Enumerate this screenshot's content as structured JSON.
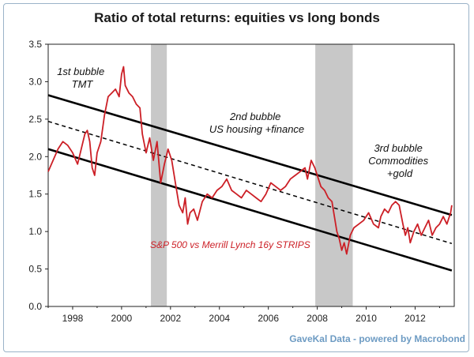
{
  "chart_data": {
    "type": "line",
    "title": "Ratio of total returns: equities vs long bonds",
    "xlabel": "",
    "ylabel": "",
    "xlim": [
      1997.0,
      2013.6
    ],
    "ylim": [
      0.0,
      3.5
    ],
    "xticks": [
      1998,
      2000,
      2002,
      2004,
      2006,
      2008,
      2010,
      2012
    ],
    "xtick_labels": [
      "1998",
      "2000",
      "2002",
      "2004",
      "2006",
      "2008",
      "2010",
      "2012"
    ],
    "yticks": [
      0.0,
      0.5,
      1.0,
      1.5,
      2.0,
      2.5,
      3.0,
      3.5
    ],
    "ytick_labels": [
      "0.0",
      "0.5",
      "1.0",
      "1.5",
      "2.0",
      "2.5",
      "3.0",
      "3.5"
    ],
    "recessions": [
      {
        "start": 2001.2,
        "end": 2001.85
      },
      {
        "start": 2007.92,
        "end": 2009.45
      }
    ],
    "series": [
      {
        "name": "S&P 500 vs Merrill Lynch 16y STRIPS",
        "color": "#cc1f26",
        "x": [
          1997.0,
          1997.2,
          1997.4,
          1997.6,
          1997.8,
          1998.0,
          1998.2,
          1998.35,
          1998.5,
          1998.6,
          1998.7,
          1998.8,
          1998.9,
          1999.0,
          1999.15,
          1999.3,
          1999.45,
          1999.6,
          1999.75,
          1999.9,
          2000.0,
          2000.08,
          2000.15,
          2000.3,
          2000.45,
          2000.6,
          2000.75,
          2000.85,
          2001.0,
          2001.15,
          2001.3,
          2001.45,
          2001.6,
          2001.75,
          2001.9,
          2002.05,
          2002.2,
          2002.35,
          2002.5,
          2002.6,
          2002.7,
          2002.8,
          2002.95,
          2003.1,
          2003.3,
          2003.5,
          2003.7,
          2003.9,
          2004.1,
          2004.3,
          2004.5,
          2004.7,
          2004.9,
          2005.1,
          2005.3,
          2005.5,
          2005.7,
          2005.9,
          2006.1,
          2006.3,
          2006.5,
          2006.7,
          2006.9,
          2007.1,
          2007.3,
          2007.5,
          2007.6,
          2007.75,
          2007.9,
          2008.0,
          2008.15,
          2008.3,
          2008.45,
          2008.6,
          2008.7,
          2008.8,
          2008.9,
          2009.0,
          2009.1,
          2009.2,
          2009.35,
          2009.5,
          2009.7,
          2009.9,
          2010.1,
          2010.3,
          2010.5,
          2010.6,
          2010.75,
          2010.9,
          2011.05,
          2011.2,
          2011.35,
          2011.5,
          2011.6,
          2011.7,
          2011.8,
          2011.95,
          2012.1,
          2012.25,
          2012.4,
          2012.55,
          2012.7,
          2012.85,
          2013.0,
          2013.15,
          2013.3,
          2013.45,
          2013.5
        ],
        "values": [
          1.8,
          1.95,
          2.1,
          2.2,
          2.15,
          2.05,
          1.9,
          2.1,
          2.3,
          2.35,
          2.2,
          1.85,
          1.75,
          2.05,
          2.2,
          2.55,
          2.8,
          2.85,
          2.9,
          2.8,
          3.1,
          3.2,
          2.95,
          2.85,
          2.8,
          2.7,
          2.65,
          2.3,
          2.05,
          2.25,
          1.95,
          2.2,
          1.65,
          1.9,
          2.1,
          1.95,
          1.65,
          1.35,
          1.25,
          1.45,
          1.1,
          1.25,
          1.3,
          1.15,
          1.4,
          1.5,
          1.45,
          1.55,
          1.6,
          1.7,
          1.55,
          1.5,
          1.45,
          1.55,
          1.5,
          1.45,
          1.4,
          1.5,
          1.65,
          1.6,
          1.55,
          1.6,
          1.7,
          1.75,
          1.8,
          1.85,
          1.7,
          1.95,
          1.85,
          1.75,
          1.6,
          1.55,
          1.45,
          1.4,
          1.2,
          1.0,
          0.9,
          0.75,
          0.85,
          0.7,
          0.95,
          1.05,
          1.1,
          1.15,
          1.25,
          1.1,
          1.05,
          1.2,
          1.3,
          1.25,
          1.35,
          1.4,
          1.35,
          1.1,
          0.95,
          1.05,
          0.85,
          1.0,
          1.1,
          0.95,
          1.05,
          1.15,
          0.95,
          1.05,
          1.1,
          1.2,
          1.1,
          1.25,
          1.35
        ]
      }
    ],
    "trendlines": [
      {
        "name": "upper",
        "style": "solid",
        "x": [
          1997.0,
          2013.5
        ],
        "values": [
          2.82,
          1.22
        ]
      },
      {
        "name": "middle",
        "style": "dashed",
        "x": [
          1997.0,
          2013.5
        ],
        "values": [
          2.47,
          0.84
        ]
      },
      {
        "name": "lower",
        "style": "solid",
        "x": [
          1997.0,
          2013.5
        ],
        "values": [
          2.1,
          0.48
        ]
      }
    ],
    "annotations": [
      {
        "lines": [
          "1st bubble",
          "TMT"
        ]
      },
      {
        "lines": [
          "2nd bubble",
          "US housing +finance"
        ]
      },
      {
        "lines": [
          "3rd bubble",
          "Commodities",
          "+gold"
        ]
      }
    ],
    "series_label": "S&P 500 vs Merrill Lynch 16y STRIPS",
    "source": "GaveKal Data - powered by Macrobond"
  },
  "colors": {
    "series": "#cc1f26",
    "recession": "#c8c8c8",
    "trend": "#000000",
    "source": "#6d9bc3",
    "border": "#9bb3c8"
  }
}
